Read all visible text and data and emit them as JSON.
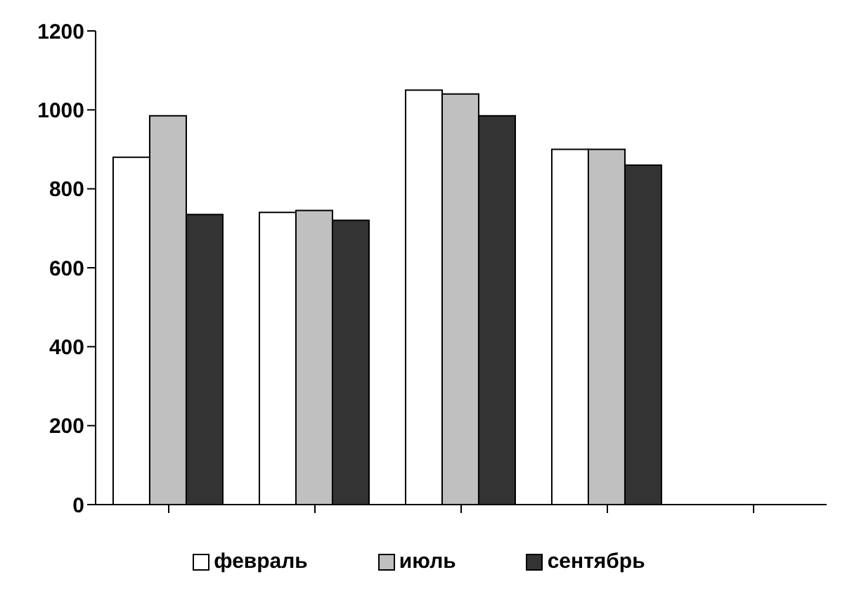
{
  "chart_data": {
    "type": "bar",
    "categories": [
      null,
      null,
      null,
      null,
      null
    ],
    "series": [
      {
        "name": "февраль",
        "color": "#ffffff",
        "values": [
          880,
          740,
          1050,
          900,
          null
        ]
      },
      {
        "name": "июль",
        "color": "#c0c0c0",
        "values": [
          985,
          745,
          1040,
          900,
          null
        ]
      },
      {
        "name": "сентябрь",
        "color": "#333333",
        "values": [
          735,
          720,
          985,
          860,
          null
        ]
      }
    ],
    "ylim": [
      0,
      1200
    ],
    "yticks": [
      0,
      200,
      400,
      600,
      800,
      1000,
      1200
    ],
    "grid": false,
    "legend": "bottom"
  }
}
